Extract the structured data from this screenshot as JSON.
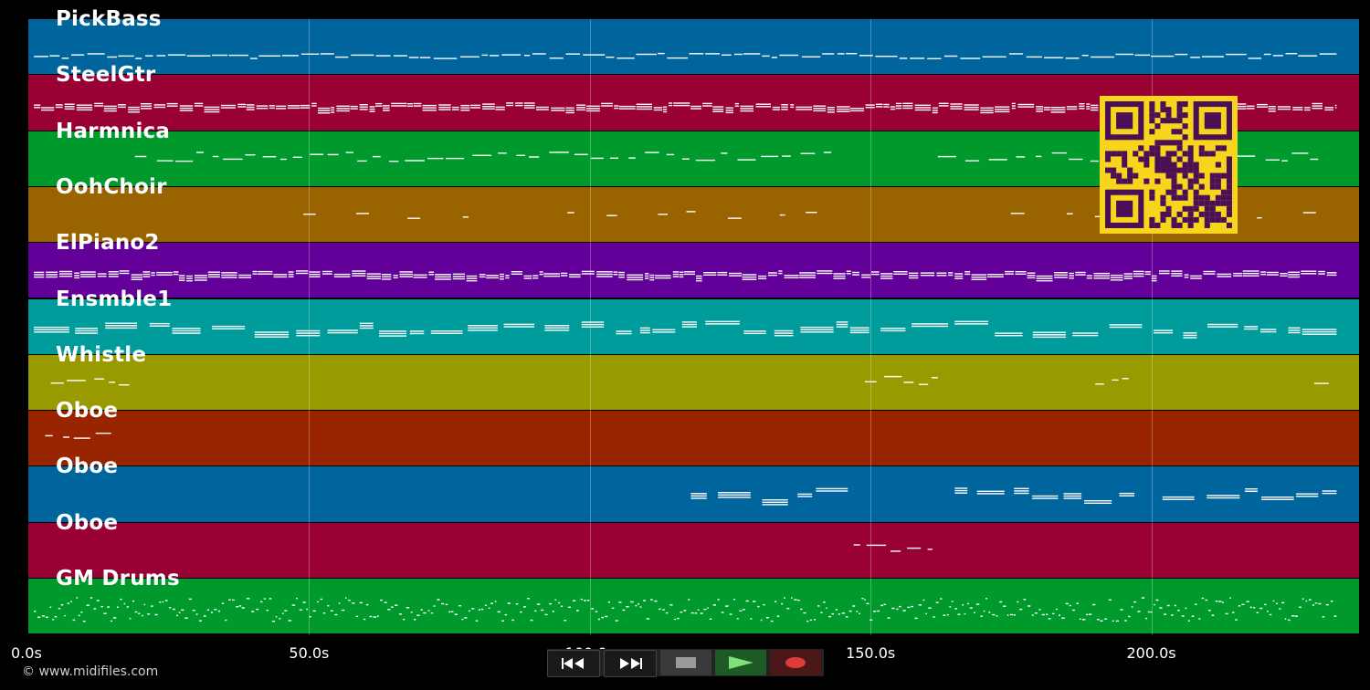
{
  "colors": {
    "background": "#000000",
    "grid": "rgba(255,255,255,0.28)",
    "note": "#ffffff",
    "qr_fg": "#4a0f55",
    "qr_bg": "#f7d51d"
  },
  "timeline": {
    "max_seconds": 237,
    "ticks": [
      {
        "seconds": 0,
        "label": "0.0s"
      },
      {
        "seconds": 50,
        "label": "50.0s"
      },
      {
        "seconds": 100,
        "label": "100.0s"
      },
      {
        "seconds": 150,
        "label": "150.0s"
      },
      {
        "seconds": 200,
        "label": "200.0s"
      }
    ]
  },
  "tracks": [
    {
      "name": "PickBass",
      "color": "#00659c",
      "activity": [
        [
          1,
          233
        ]
      ],
      "style": "dashline"
    },
    {
      "name": "SteelGtr",
      "color": "#990033",
      "activity": [
        [
          1,
          233
        ]
      ],
      "style": "dense"
    },
    {
      "name": "Harmnica",
      "color": "#009a2c",
      "activity": [
        [
          19,
          143
        ],
        [
          162,
          230
        ]
      ],
      "style": "melody"
    },
    {
      "name": "OohChoir",
      "color": "#996300",
      "activity": [
        [
          49,
          80
        ],
        [
          96,
          143
        ],
        [
          175,
          233
        ]
      ],
      "style": "sparse"
    },
    {
      "name": "ElPiano2",
      "color": "#630099",
      "activity": [
        [
          1,
          233
        ]
      ],
      "style": "dense"
    },
    {
      "name": "Ensmble1",
      "color": "#009b9b",
      "activity": [
        [
          1,
          233
        ]
      ],
      "style": "chords"
    },
    {
      "name": "Whistle",
      "color": "#999900",
      "activity": [
        [
          4,
          18
        ],
        [
          149,
          162
        ],
        [
          190,
          197
        ],
        [
          229,
          233
        ]
      ],
      "style": "melody"
    },
    {
      "name": "Oboe",
      "color": "#992500",
      "activity": [
        [
          3,
          16
        ]
      ],
      "style": "melody"
    },
    {
      "name": "Oboe",
      "color": "#00659c",
      "activity": [
        [
          118,
          146
        ],
        [
          165,
          197
        ],
        [
          202,
          233
        ]
      ],
      "style": "chords"
    },
    {
      "name": "Oboe",
      "color": "#990033",
      "activity": [
        [
          147,
          161
        ]
      ],
      "style": "melody"
    },
    {
      "name": "GM Drums",
      "color": "#009a2c",
      "activity": [
        [
          1,
          233
        ]
      ],
      "style": "drums"
    }
  ],
  "footer": {
    "copyright": "© www.midifiles.com"
  },
  "transport": {
    "buttons": [
      {
        "name": "rewind-button",
        "icon": "rewind-icon"
      },
      {
        "name": "fast-forward-button",
        "icon": "fast-forward-icon"
      },
      {
        "name": "stop-button",
        "icon": "stop-icon"
      },
      {
        "name": "play-button",
        "icon": "play-icon"
      },
      {
        "name": "record-button",
        "icon": "record-icon"
      }
    ]
  }
}
